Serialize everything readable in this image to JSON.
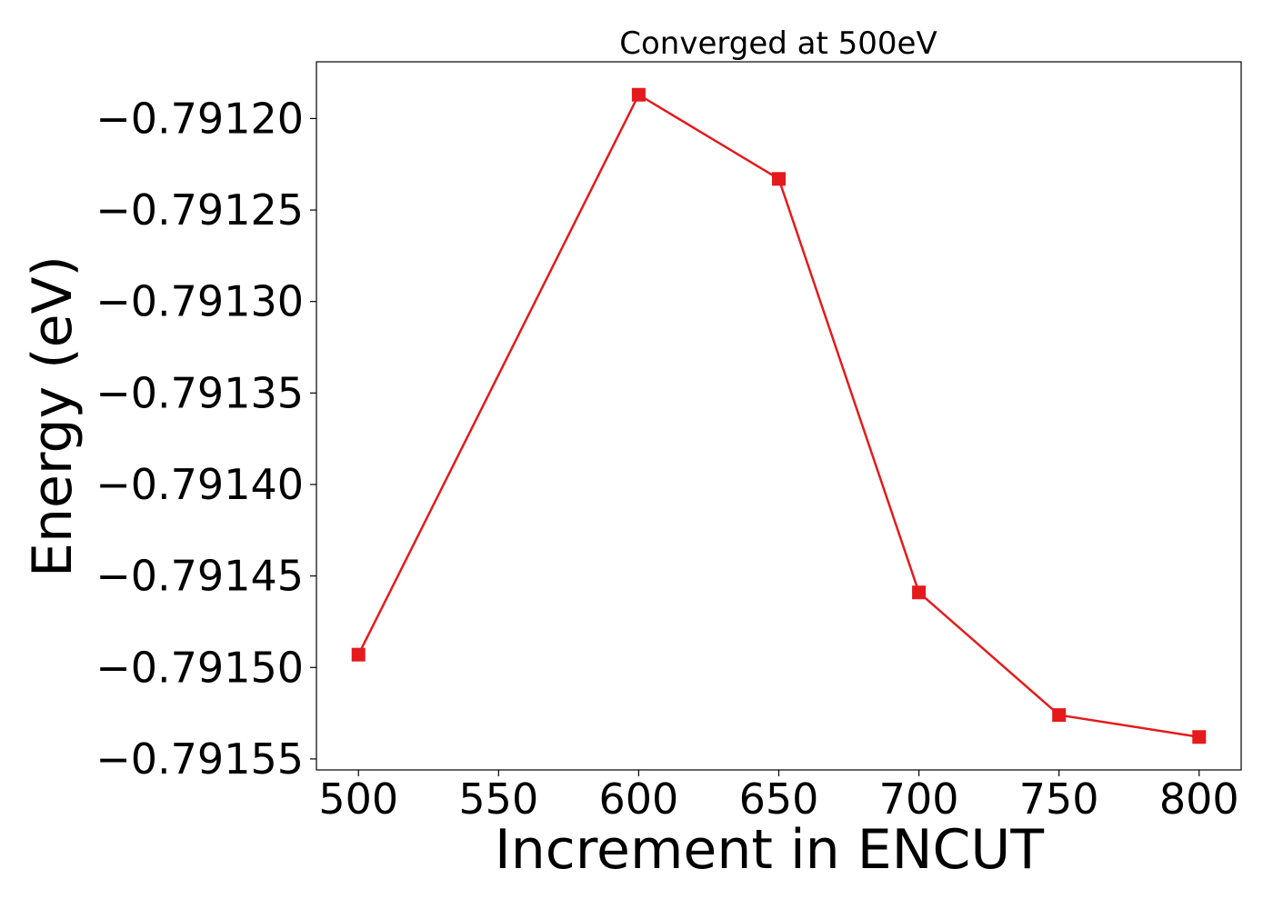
{
  "chart_data": {
    "type": "line",
    "title": "Converged at 500eV",
    "xlabel": "Increment in ENCUT",
    "ylabel": "Energy (eV)",
    "x": [
      500,
      600,
      650,
      700,
      750,
      800
    ],
    "series": [
      {
        "values": [
          -0.791493,
          -0.791187,
          -0.791233,
          -0.791459,
          -0.791526,
          -0.791538
        ],
        "color": "#e41a1c",
        "marker": "square"
      }
    ],
    "xticks": [
      500,
      550,
      600,
      650,
      700,
      750,
      800
    ],
    "xtick_labels": [
      "500",
      "550",
      "600",
      "650",
      "700",
      "750",
      "800"
    ],
    "yticks": [
      -0.7912,
      -0.79125,
      -0.7913,
      -0.79135,
      -0.7914,
      -0.79145,
      -0.7915,
      -0.79155
    ],
    "ytick_labels": [
      "−0.79120",
      "−0.79125",
      "−0.79130",
      "−0.79135",
      "−0.79140",
      "−0.79145",
      "−0.79150",
      "−0.79155"
    ],
    "xlim": [
      485,
      815
    ],
    "ylim": [
      -0.791556,
      -0.791169
    ],
    "grid": false,
    "legend": false
  }
}
